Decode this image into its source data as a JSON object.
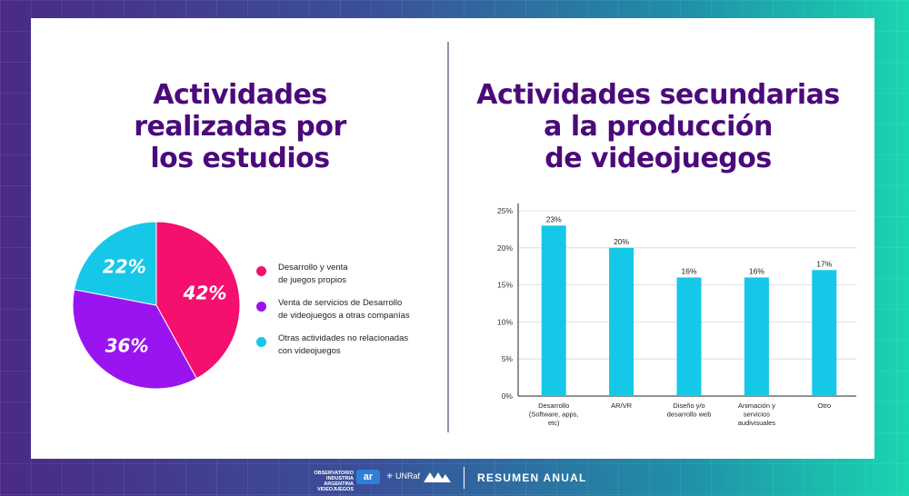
{
  "titles": {
    "left": "Actividades\nrealizadas por\nlos estudios",
    "right": "Actividades secundarias\na la producción\nde videojuegos"
  },
  "colors": {
    "pink": "#f50f6e",
    "purple": "#9a14f0",
    "cyan": "#16c8e8",
    "title": "#4b0a7a"
  },
  "chart_data": [
    {
      "type": "pie",
      "slices": [
        {
          "label": "Desarrollo y venta\nde juegos propios",
          "value": 42,
          "display": "42%",
          "color": "#f50f6e"
        },
        {
          "label": "Venta de servicios de Desarrollo\nde videojuegos a otras companías",
          "value": 36,
          "display": "36%",
          "color": "#9a14f0"
        },
        {
          "label": "Otras actividades no relacionadas\ncon videojuegos",
          "value": 22,
          "display": "22%",
          "color": "#16c8e8"
        }
      ],
      "legend": "right"
    },
    {
      "type": "bar",
      "categories": [
        "Desarrollo\n(Software, apps,\netc)",
        "AR/VR",
        "Diseño y/o\ndesarrollo web",
        "Animación y\nservicios\naudivisuales",
        "Otro"
      ],
      "values": [
        23,
        20,
        16,
        16,
        17
      ],
      "data_labels": [
        "23%",
        "20%",
        "16%",
        "16%",
        "17%"
      ],
      "yticks": [
        0,
        5,
        10,
        15,
        20,
        25
      ],
      "ytick_labels": [
        "0%",
        "5%",
        "10%",
        "15%",
        "20%",
        "25%"
      ],
      "ylim": [
        0,
        25
      ],
      "grid": true,
      "color": "#16c8e8"
    }
  ],
  "footer": {
    "logo_lines": [
      "OBSERVATORIO",
      "INDUSTRIA ARGENTINA",
      "VIDEOJUEGOS"
    ],
    "ar_logo": "ar",
    "unraf": "UNRaf",
    "section": "RESUMEN ANUAL"
  }
}
